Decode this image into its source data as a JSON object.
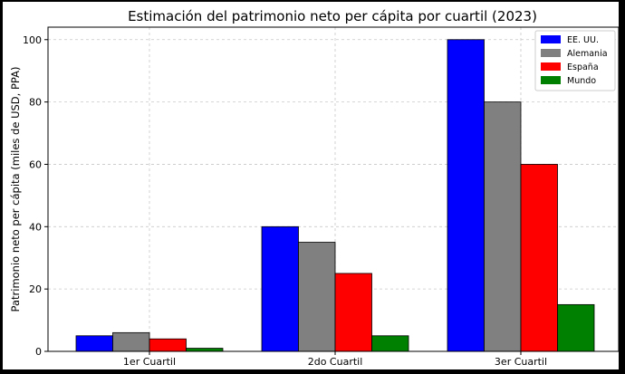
{
  "chart_data": {
    "type": "bar",
    "title": "Estimación del patrimonio neto per cápita por cuartil (2023)",
    "xlabel": "",
    "ylabel": "Patrimonio neto per cápita (miles de USD, PPA)",
    "categories": [
      "1er Cuartil",
      "2do Cuartil",
      "3er Cuartil"
    ],
    "series": [
      {
        "name": "EE. UU.",
        "color": "#0000ff",
        "values": [
          5,
          40,
          100
        ]
      },
      {
        "name": "Alemania",
        "color": "#808080",
        "values": [
          6,
          35,
          80
        ]
      },
      {
        "name": "España",
        "color": "#ff0000",
        "values": [
          4,
          25,
          60
        ]
      },
      {
        "name": "Mundo",
        "color": "#008000",
        "values": [
          1,
          5,
          15
        ]
      }
    ],
    "ylim": [
      0,
      104
    ],
    "yticks": [
      0,
      20,
      40,
      60,
      80,
      100
    ],
    "grid": true,
    "legend": "top-right"
  }
}
